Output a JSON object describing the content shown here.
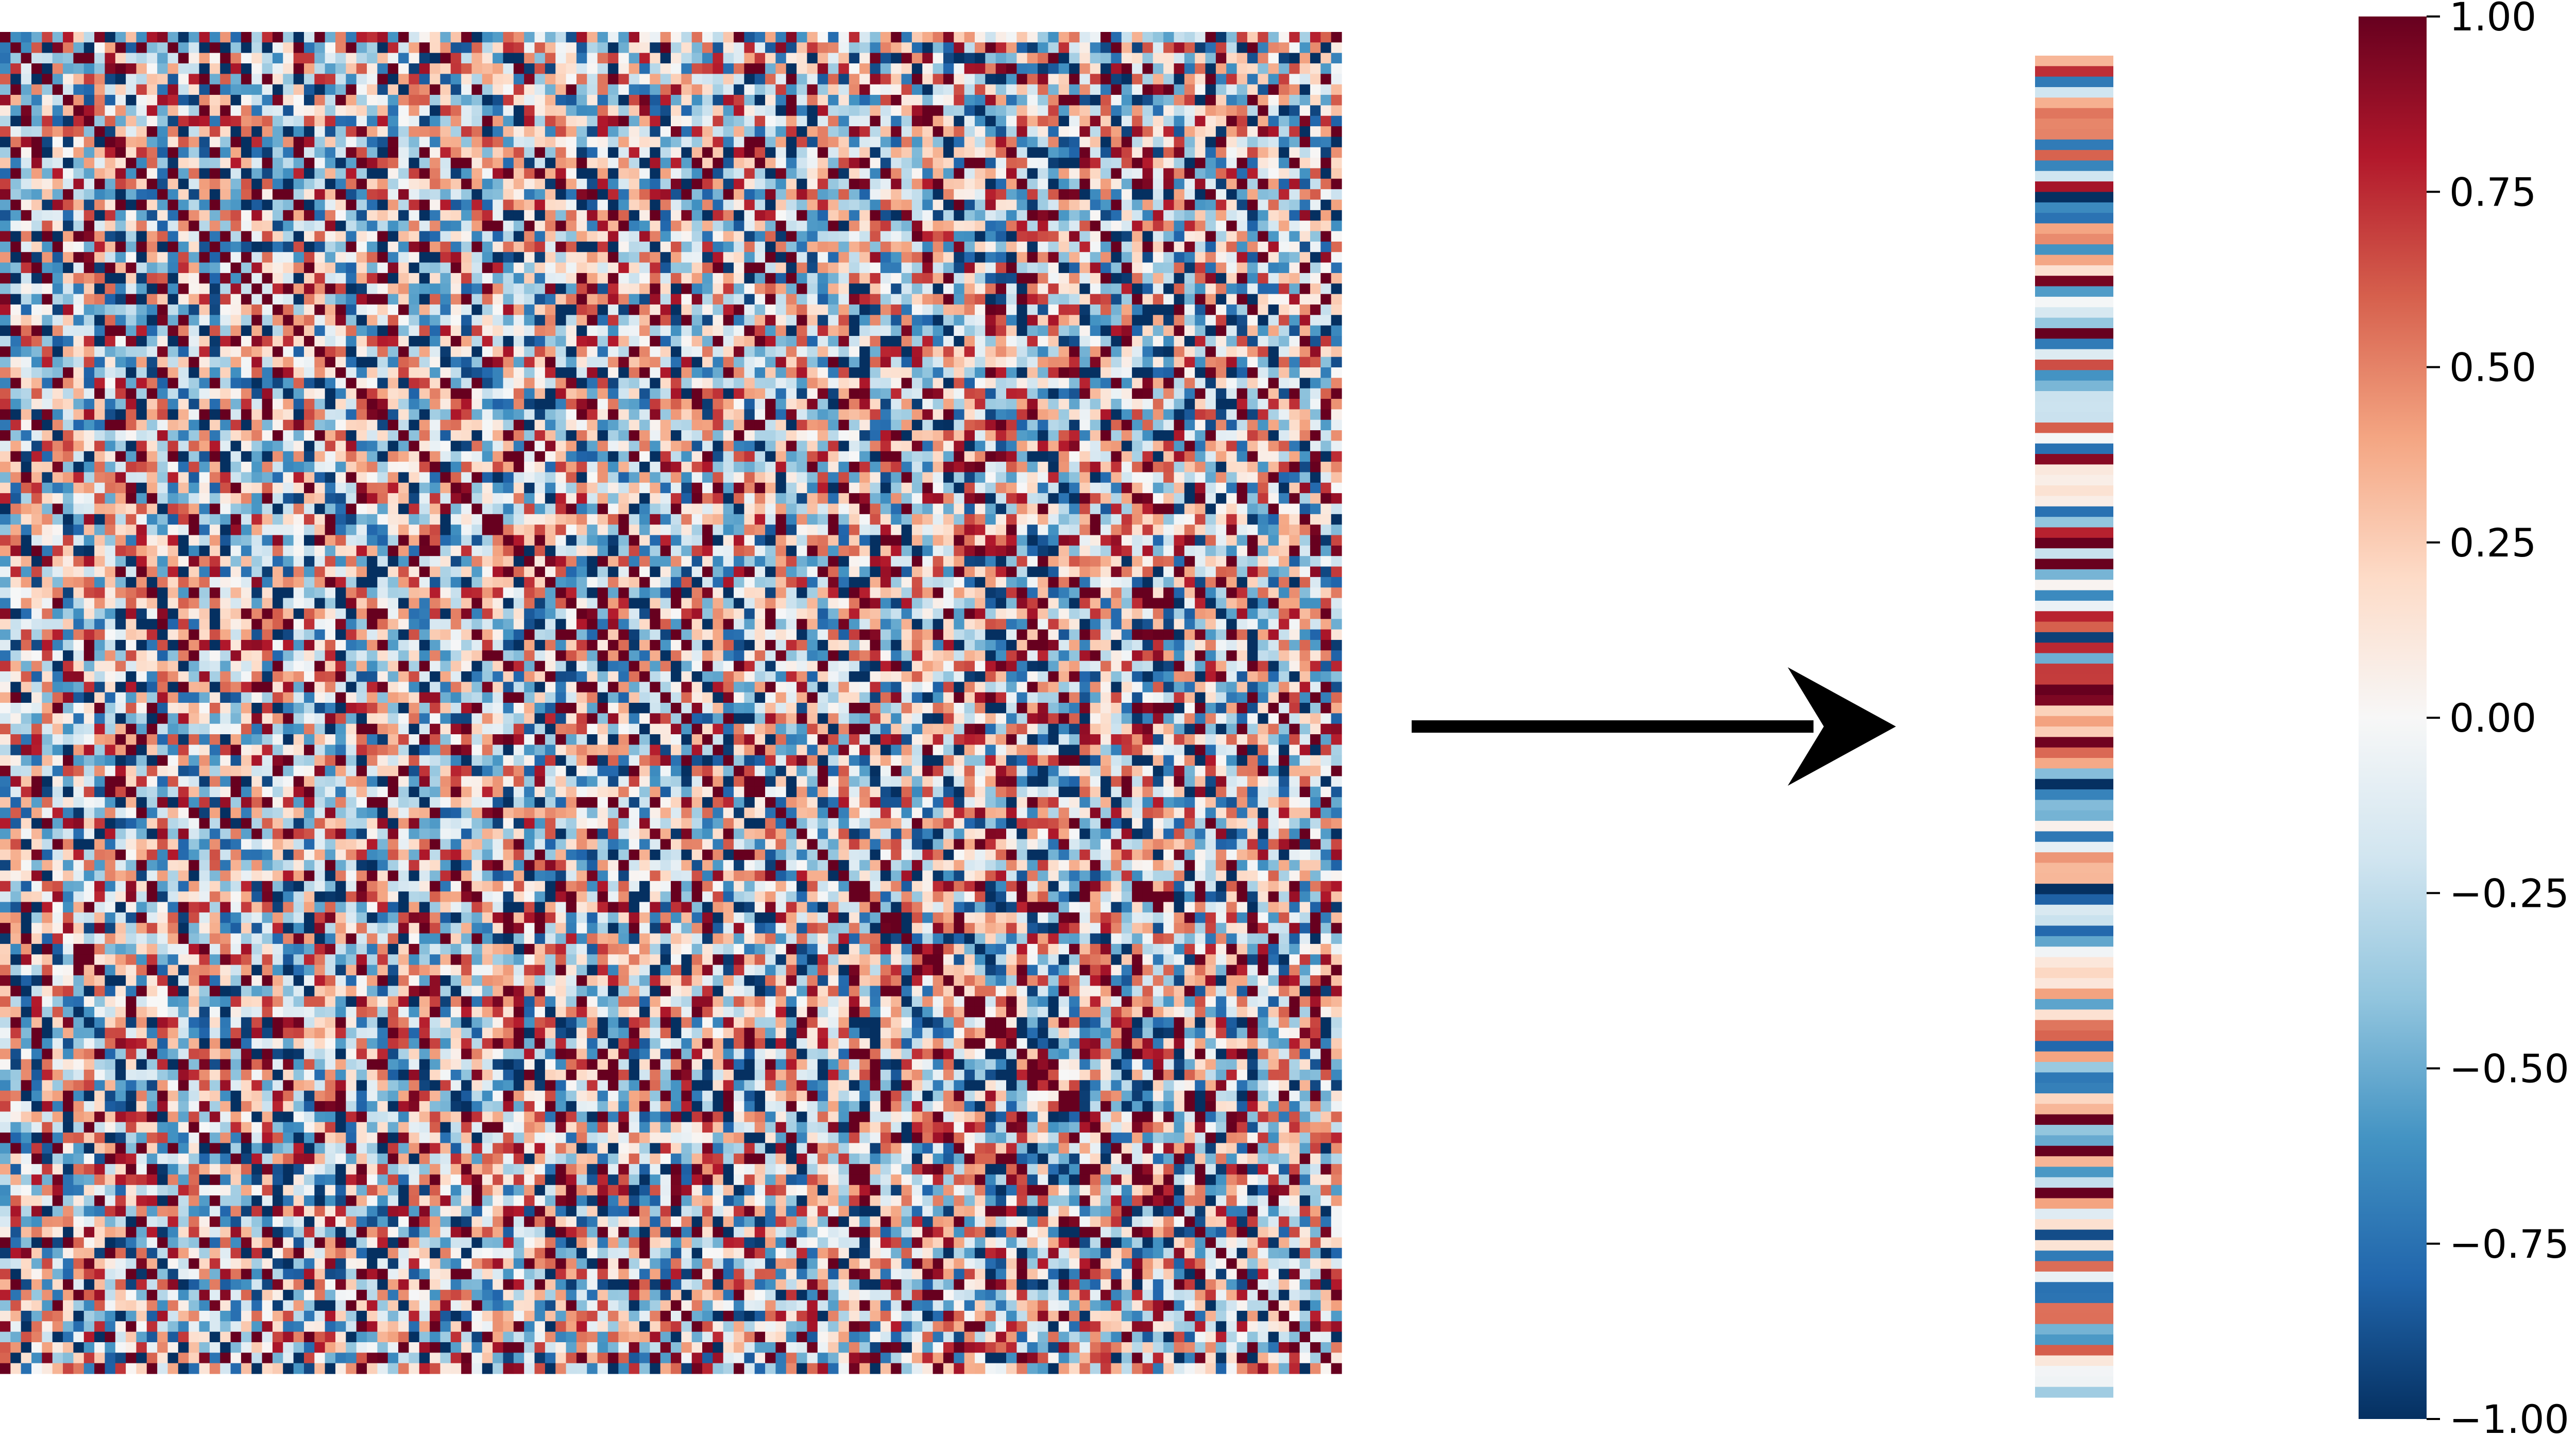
{
  "chart_data": [
    {
      "type": "heatmap",
      "title": "",
      "xlabel": "",
      "ylabel": "",
      "rows": 128,
      "cols": 128,
      "value_range": [
        -1.0,
        1.0
      ],
      "colormap": "RdBu_r",
      "grid": false
    },
    {
      "type": "heatmap",
      "title": "",
      "xlabel": "",
      "ylabel": "",
      "rows": 128,
      "cols": 1,
      "value_range": [
        -1.0,
        1.0
      ],
      "colormap": "RdBu_r",
      "grid": false
    }
  ],
  "colorbar": {
    "min": -1.0,
    "max": 1.0,
    "ticks": [
      {
        "value": 1.0,
        "label": "1.00"
      },
      {
        "value": 0.75,
        "label": "0.75"
      },
      {
        "value": 0.5,
        "label": "0.50"
      },
      {
        "value": 0.25,
        "label": "0.25"
      },
      {
        "value": 0.0,
        "label": "0.00"
      },
      {
        "value": -0.25,
        "label": "−0.25"
      },
      {
        "value": -0.5,
        "label": "−0.50"
      },
      {
        "value": -0.75,
        "label": "−0.75"
      },
      {
        "value": -1.0,
        "label": "−1.00"
      }
    ],
    "colors": [
      "#053061",
      "#2166ac",
      "#4393c3",
      "#92c5de",
      "#d1e5f0",
      "#f7f7f7",
      "#fddbc7",
      "#f4a582",
      "#d6604d",
      "#b2182b",
      "#67001f"
    ]
  },
  "arrow_color": "#000000"
}
